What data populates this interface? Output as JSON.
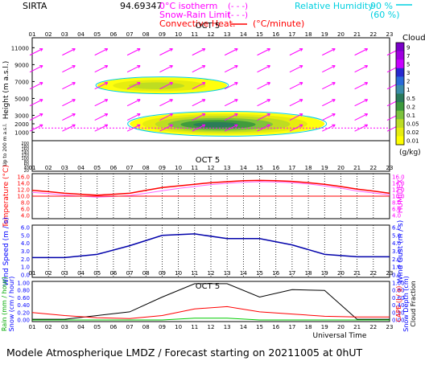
{
  "header": {
    "station": "SIRTA",
    "coords": "94.69347",
    "legend_isotherm": "0°C isotherm",
    "legend_isotherm_mark": "(- - -)",
    "legend_snow_rain": "Snow-Rain Limit",
    "legend_snow_rain_mark": "(- - -)",
    "legend_convective": "Convective Heat.",
    "legend_convective_unit": "(°C/minute)",
    "legend_rh": "Relative Humidity",
    "legend_rh_90": "90 %",
    "legend_rh_60": "(60 %)"
  },
  "colors": {
    "magenta": "#ff00ff",
    "cyan": "#00d0e0",
    "red": "#ff0000",
    "darkred": "#cc0000",
    "blue": "#0000ff",
    "navy": "#0000aa",
    "black": "#000000"
  },
  "footer": {
    "title": "Modele Atmospherique LMDZ / Forecast starting on 20211005 at 0hUT",
    "universal_time": "Universal Time"
  },
  "chart_data": [
    {
      "type": "heatmap",
      "panel": "clouds",
      "date_label": "OCT  5",
      "hours": [
        "01",
        "02",
        "03",
        "04",
        "05",
        "06",
        "07",
        "08",
        "09",
        "10",
        "11",
        "12",
        "13",
        "14",
        "15",
        "16",
        "17",
        "18",
        "19",
        "20",
        "21",
        "22",
        "23"
      ],
      "ylabel": "Height (m a.s.l.)",
      "ylabel_low": "Up to 200 m a.s.l.",
      "y_ticks_upper": [
        "11000",
        "9000",
        "7000",
        "5000",
        "3000",
        "2000",
        "1000"
      ],
      "y_ticks_lower": [
        "200",
        "180",
        "160",
        "140",
        "120",
        "100",
        "80",
        "60",
        "40",
        "20"
      ],
      "colorbar_title": "Clouds",
      "colorbar_unit": "(g/kg)",
      "colorbar_ticks": [
        "9",
        "7",
        "5",
        "3",
        "2",
        "1",
        "0.5",
        "0.2",
        "0.1",
        "0.05",
        "0.02",
        "0.01"
      ],
      "colorbar_colors": [
        "#7a00c8",
        "#a000e0",
        "#c800ff",
        "#2828d0",
        "#2a6ad8",
        "#3a8ca8",
        "#2a7a5a",
        "#3c9a3c",
        "#7cc23c",
        "#bcdc24",
        "#e6ec10",
        "#ffff00"
      ],
      "cloud_layers": [
        {
          "name": "upper",
          "start_hour": 5,
          "end_hour": 13,
          "top_m": 7500,
          "bottom_m": 5600,
          "level": "0.05"
        },
        {
          "name": "lower",
          "start_hour": 7,
          "end_hour": 19,
          "top_m": 3400,
          "bottom_m": 600,
          "level": "0.5"
        }
      ]
    },
    {
      "type": "line",
      "panel": "temperature",
      "ylabel": "Temperature (°C)",
      "ylabel_right": "HUMIDEX",
      "y_ticks": [
        "16.0",
        "14.0",
        "12.0",
        "10.0",
        "8.0",
        "6.0",
        "4.0"
      ],
      "ylim": [
        4,
        16
      ],
      "x": [
        1,
        2,
        3,
        4,
        5,
        6,
        7,
        8,
        9,
        10,
        11,
        12,
        13,
        14,
        15,
        16,
        17,
        18,
        19,
        20,
        21,
        22,
        23
      ],
      "series": [
        {
          "values": [
            11.8,
            11.4,
            10.9,
            10.6,
            10.3,
            10.6,
            10.9,
            11.8,
            12.7,
            13.2,
            13.7,
            14.2,
            14.5,
            14.8,
            14.9,
            14.8,
            14.6,
            14.2,
            13.7,
            13.0,
            12.2,
            11.6,
            10.9
          ],
          "color": "#ff0000"
        },
        {
          "values": [
            11.2,
            10.8,
            10.3,
            10.0,
            9.7,
            9.9,
            10.2,
            10.9,
            11.7,
            12.4,
            13.0,
            13.6,
            14.0,
            14.3,
            14.5,
            14.4,
            14.2,
            13.8,
            13.2,
            12.5,
            11.6,
            11.0,
            10.4
          ],
          "color": "#ff66ff"
        },
        {
          "values": [
            10.0,
            10.0,
            10.0,
            10.0,
            10.0,
            10.0,
            10.0,
            10.0,
            10.0,
            10.0,
            10.0,
            10.0,
            10.0,
            10.0,
            10.0,
            10.0,
            10.0,
            10.0,
            10.0,
            10.0,
            10.0,
            10.0,
            10.0
          ],
          "color": "#ff0000"
        }
      ]
    },
    {
      "type": "line",
      "panel": "wind",
      "ylabel": "Wind Speed (m / s)",
      "ylabel_right": "Wind Gust (m / s)",
      "y_ticks": [
        "6.0",
        "5.0",
        "4.0",
        "3.0",
        "2.0",
        "1.0",
        "0.0"
      ],
      "ylim": [
        0,
        6
      ],
      "x": [
        1,
        3,
        5,
        7,
        9,
        11,
        13,
        15,
        17,
        19,
        21,
        23
      ],
      "series": [
        {
          "values": [
            2.2,
            2.2,
            2.6,
            3.7,
            5.0,
            5.2,
            4.6,
            4.6,
            3.8,
            2.6,
            2.3,
            2.3
          ],
          "color": "#0000aa"
        }
      ]
    },
    {
      "type": "line",
      "panel": "precipitation",
      "date_label": "OCT  5",
      "ylabel": "Rain (mm / hour)",
      "ylabel2": "Snow (cm / hour)",
      "ylabel_right": "CAPE (J / g)",
      "ylabel_right2": "Snow Depth (cm)",
      "ylabel_right3": "Cloud Fraction",
      "y_ticks": [
        "1.00",
        "0.80",
        "0.60",
        "0.40",
        "0.20",
        "0.00"
      ],
      "ylim": [
        0,
        1
      ],
      "x": [
        1,
        3,
        5,
        7,
        9,
        11,
        13,
        15,
        17,
        19,
        21,
        23
      ],
      "series": [
        {
          "name": "cloud fraction",
          "values": [
            0.02,
            0.02,
            0.12,
            0.22,
            0.62,
            0.98,
            0.98,
            0.62,
            0.82,
            0.8,
            0.02,
            0.02
          ],
          "color": "#000000"
        },
        {
          "name": "CAPE",
          "values": [
            0.2,
            0.12,
            0.06,
            0.04,
            0.12,
            0.3,
            0.36,
            0.22,
            0.16,
            0.1,
            0.08,
            0.08
          ],
          "color": "#ff0000"
        },
        {
          "name": "rain",
          "values": [
            0,
            0,
            0,
            0,
            0,
            0.05,
            0.05,
            0,
            0,
            0,
            0,
            0
          ],
          "color": "#00cc00"
        }
      ]
    }
  ]
}
